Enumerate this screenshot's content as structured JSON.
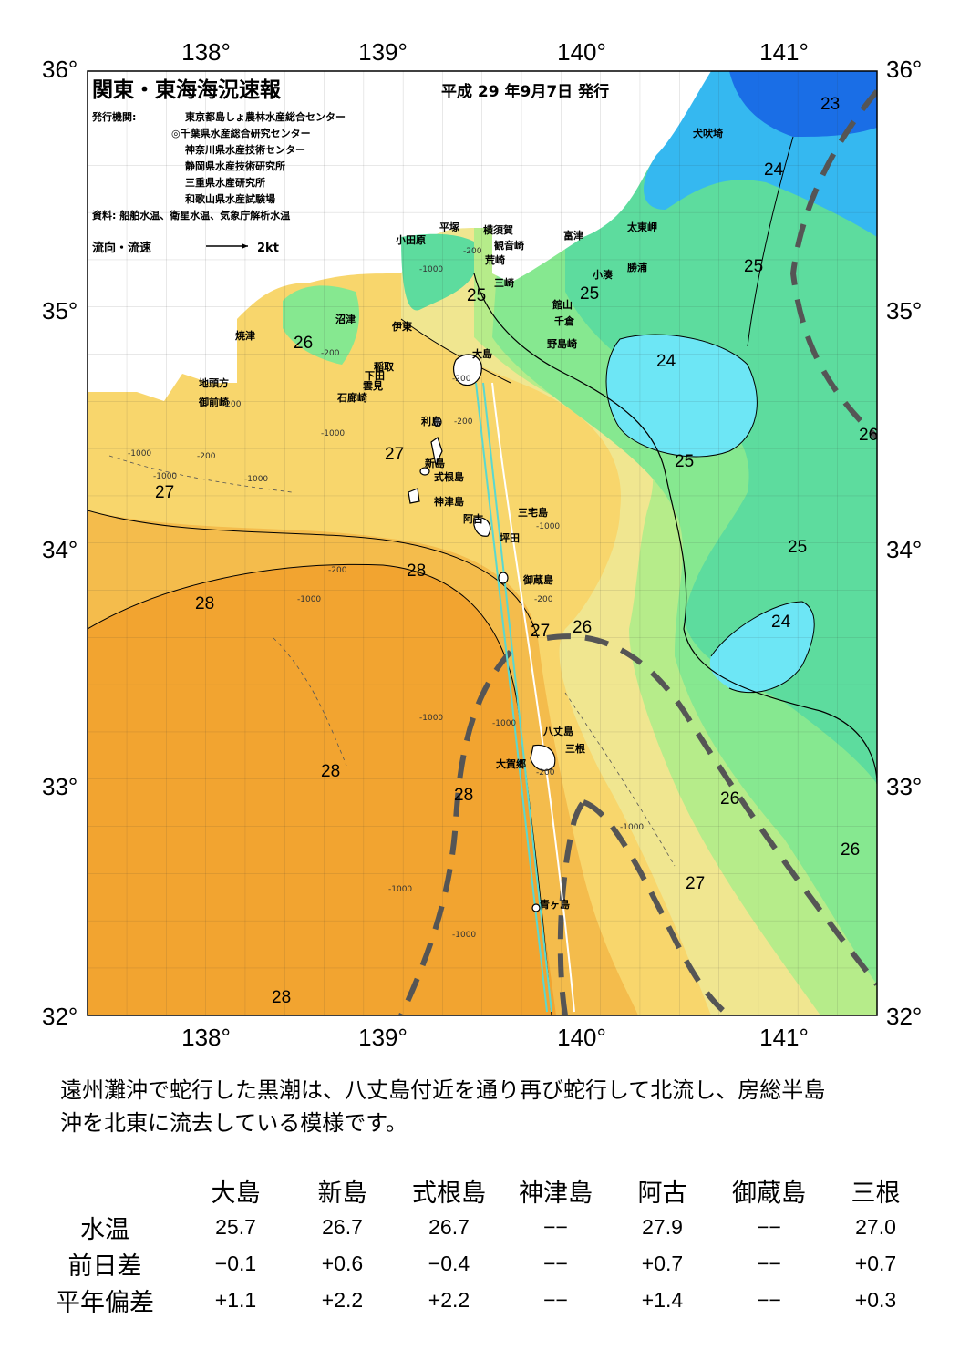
{
  "map": {
    "title": "関東・東海海況速報",
    "date": "平成 29 年9月7日 発行",
    "publisher_label": "発行機関:",
    "publishers": [
      "東京都島しょ農林水産総合センター",
      "◎千葉県水産総合研究センター",
      "神奈川県水産技術センター",
      "静岡県水産技術研究所",
      "三重県水産研究所",
      "和歌山県水産試験場"
    ],
    "sources": "資料: 船舶水温、衛星水温、気象庁解析水温",
    "flow_legend": "流向・流速",
    "flow_unit": "2kt",
    "lon_ticks": [
      "138°",
      "139°",
      "140°",
      "141°"
    ],
    "lat_ticks": [
      "36°",
      "35°",
      "34°",
      "33°",
      "32°"
    ],
    "places": [
      {
        "name": "犬吠埼"
      },
      {
        "name": "太東岬"
      },
      {
        "name": "勝浦"
      },
      {
        "name": "小湊"
      },
      {
        "name": "富津"
      },
      {
        "name": "横須賀"
      },
      {
        "name": "観音崎"
      },
      {
        "name": "荒崎"
      },
      {
        "name": "三崎"
      },
      {
        "name": "平塚"
      },
      {
        "name": "小田原"
      },
      {
        "name": "館山"
      },
      {
        "name": "千倉"
      },
      {
        "name": "野島崎"
      },
      {
        "name": "沼津"
      },
      {
        "name": "伊東"
      },
      {
        "name": "焼津"
      },
      {
        "name": "稲取"
      },
      {
        "name": "下田"
      },
      {
        "name": "雲見"
      },
      {
        "name": "石廊崎"
      },
      {
        "name": "地頭方"
      },
      {
        "name": "御前崎"
      },
      {
        "name": "大島"
      },
      {
        "name": "利島"
      },
      {
        "name": "新島"
      },
      {
        "name": "式根島"
      },
      {
        "name": "神津島"
      },
      {
        "name": "三宅島"
      },
      {
        "name": "阿古"
      },
      {
        "name": "坪田"
      },
      {
        "name": "御蔵島"
      },
      {
        "name": "八丈島"
      },
      {
        "name": "三根"
      },
      {
        "name": "大賀郷"
      },
      {
        "name": "青ヶ島"
      }
    ],
    "isotherm_labels": [
      "23",
      "24",
      "25",
      "25",
      "25",
      "24",
      "26",
      "25",
      "25",
      "26",
      "27",
      "27",
      "28",
      "28",
      "27",
      "26",
      "24",
      "28",
      "28",
      "26",
      "26",
      "27",
      "28"
    ],
    "depth_labels": [
      "-1000",
      "-200",
      "-200",
      "-1000",
      "-200",
      "-200",
      "-1000",
      "-1000",
      "-200",
      "-200",
      "-1000",
      "-200",
      "-1000",
      "-200",
      "-1000",
      "-1000",
      "-1000",
      "-1000",
      "-200",
      "-1000",
      "-1000"
    ],
    "colors": {
      "t23": "#1a6ee6",
      "t24": "#35b8f0",
      "t245": "#6de6f5",
      "t25": "#5ddc9e",
      "t255": "#86e890",
      "t26": "#b6ec8a",
      "t265": "#f0e690",
      "t27": "#f8d66c",
      "t275": "#f4bc4c",
      "t28": "#f2a430",
      "kuroshio": "#555555"
    }
  },
  "description": [
    "遠州灘沖で蛇行した黒潮は、八丈島付近を通り再び蛇行して北流し、房総半島",
    "沖を北東に流去している模様です。"
  ],
  "table": {
    "columns": [
      "大島",
      "新島",
      "式根島",
      "神津島",
      "阿古",
      "御蔵島",
      "三根"
    ],
    "rows": [
      {
        "label": "水温",
        "values": [
          "25.7",
          "26.7",
          "26.7",
          "−−",
          "27.9",
          "−−",
          "27.0"
        ]
      },
      {
        "label": "前日差",
        "values": [
          "−0.1",
          "+0.6",
          "−0.4",
          "−−",
          "+0.7",
          "−−",
          "+0.7"
        ]
      },
      {
        "label": "平年偏差",
        "values": [
          "+1.1",
          "+2.2",
          "+2.2",
          "−−",
          "+1.4",
          "−−",
          "+0.3"
        ]
      }
    ]
  }
}
